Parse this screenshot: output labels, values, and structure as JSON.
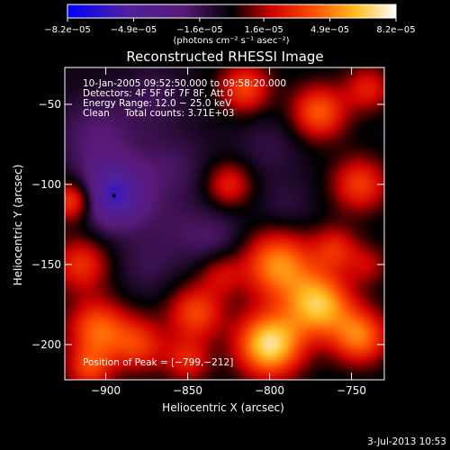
{
  "chart_data": {
    "type": "heatmap",
    "title": "Reconstructed RHESSI Image",
    "xlabel": "Heliocentric X (arcsec)",
    "ylabel": "Heliocentric Y (arcsec)",
    "xlim": [
      -925,
      -730
    ],
    "ylim": [
      -222,
      -27
    ],
    "x_ticks": [
      -900,
      -850,
      -800,
      -750
    ],
    "x_tick_labels": [
      "−900",
      "−850",
      "−800",
      "−750"
    ],
    "y_ticks": [
      -50,
      -100,
      -150,
      -200
    ],
    "y_tick_labels": [
      "−50",
      "−100",
      "−150",
      "−200"
    ],
    "colorbar": {
      "range": [
        -8.2e-05,
        8.2e-05
      ],
      "tick_values": [
        -8.2e-05,
        -4.9e-05,
        -1.6e-05,
        1.6e-05,
        4.9e-05,
        8.2e-05
      ],
      "tick_labels": [
        "−8.2e−05",
        "−4.9e−05",
        "−1.6e−05",
        "1.6e−05",
        "4.9e−05",
        "8.2e−05"
      ],
      "unit_label": "(photons cm⁻² s⁻¹ asec⁻²)",
      "colormap": [
        "#0000ff",
        "#5020a0",
        "#5a1a78",
        "#000000",
        "#d00000",
        "#ff5000",
        "#ffc020",
        "#ffffff"
      ]
    },
    "annotations": {
      "time": "10-Jan-2005 09:52:50.000 to 09:58:20.000",
      "detectors": "Detectors: 4F 5F 6F 7F 8F, Att 0",
      "energy": "Energy Range: 12.0 − 25.0 keV",
      "clean": "Clean     Total counts: 3.71E+03",
      "peak": "Position of Peak = [−799,−212]"
    },
    "minimum_marker": {
      "x": -895,
      "y": -107
    },
    "blobs": [
      {
        "x": -895,
        "y": -107,
        "w": -5.5,
        "r": 14
      },
      {
        "x": -905,
        "y": -70,
        "w": -2.0,
        "r": 18
      },
      {
        "x": -860,
        "y": -90,
        "w": -1.5,
        "r": 16
      },
      {
        "x": -835,
        "y": -135,
        "w": -1.8,
        "r": 14
      },
      {
        "x": -875,
        "y": -150,
        "w": -1.2,
        "r": 14
      },
      {
        "x": -800,
        "y": -75,
        "w": -1.0,
        "r": 15
      },
      {
        "x": -870,
        "y": -45,
        "w": -1.2,
        "r": 14
      },
      {
        "x": -815,
        "y": -40,
        "w": 4.0,
        "r": 11
      },
      {
        "x": -770,
        "y": -55,
        "w": 4.5,
        "r": 12
      },
      {
        "x": -745,
        "y": -100,
        "w": 3.8,
        "r": 12
      },
      {
        "x": -740,
        "y": -40,
        "w": 3.0,
        "r": 10
      },
      {
        "x": -825,
        "y": -100,
        "w": 3.2,
        "r": 10
      },
      {
        "x": -920,
        "y": -110,
        "w": 4.5,
        "r": 9
      },
      {
        "x": -915,
        "y": -150,
        "w": 3.5,
        "r": 12
      },
      {
        "x": -795,
        "y": -150,
        "w": 5.5,
        "r": 15
      },
      {
        "x": -770,
        "y": -175,
        "w": 6.5,
        "r": 14
      },
      {
        "x": -745,
        "y": -195,
        "w": 5.0,
        "r": 12
      },
      {
        "x": -760,
        "y": -140,
        "w": 3.0,
        "r": 10
      },
      {
        "x": -800,
        "y": -200,
        "w": 7.5,
        "r": 14
      },
      {
        "x": -845,
        "y": -180,
        "w": 4.0,
        "r": 12
      },
      {
        "x": -880,
        "y": -200,
        "w": 3.5,
        "r": 12
      },
      {
        "x": -905,
        "y": -190,
        "w": 4.5,
        "r": 13
      },
      {
        "x": -850,
        "y": -210,
        "w": 3.0,
        "r": 10
      },
      {
        "x": -830,
        "y": -155,
        "w": 2.5,
        "r": 10
      },
      {
        "x": -860,
        "y": -125,
        "w": -0.8,
        "r": 12
      },
      {
        "x": -790,
        "y": -115,
        "w": -1.0,
        "r": 12
      },
      {
        "x": -740,
        "y": -150,
        "w": 2.0,
        "r": 9
      },
      {
        "x": -910,
        "y": -215,
        "w": 3.5,
        "r": 10
      }
    ]
  },
  "footer": {
    "timestamp": "3-Jul-2013 10:53"
  }
}
